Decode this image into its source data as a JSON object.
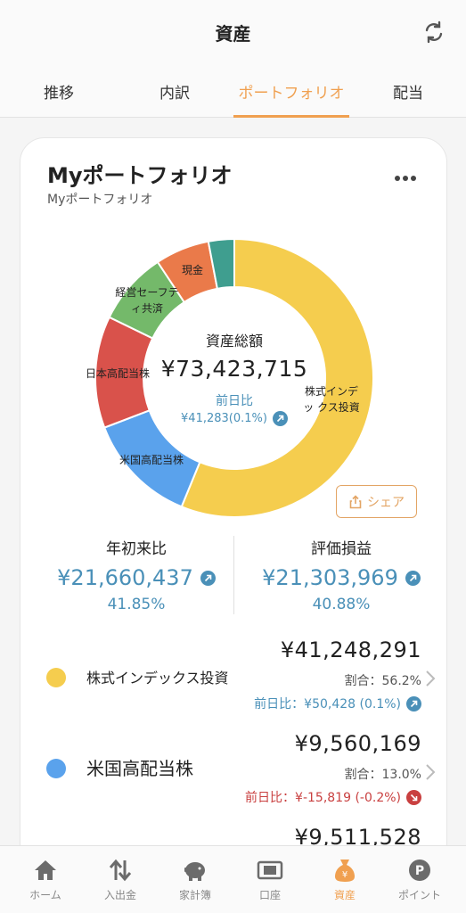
{
  "header": {
    "title": "資産"
  },
  "tabs": [
    {
      "label": "推移",
      "active": false
    },
    {
      "label": "内訳",
      "active": false
    },
    {
      "label": "ポートフォリオ",
      "active": true
    },
    {
      "label": "配当",
      "active": false
    }
  ],
  "card": {
    "title": "Myポートフォリオ",
    "subtitle": "Myポートフォリオ",
    "center_total_label": "資産総額",
    "center_total": "¥73,423,715",
    "center_prev_label": "前日比",
    "center_prev": "¥41,283(0.1%)",
    "share_label": "シェア"
  },
  "chart_data": {
    "type": "pie",
    "slices": [
      {
        "label": "株式インデックス投資",
        "share": 56.2,
        "color": "#f5cd4e"
      },
      {
        "label": "米国高配当株",
        "share": 13.0,
        "color": "#5aa2ec"
      },
      {
        "label": "日本高配当株",
        "share": 13.0,
        "color": "#d9524b"
      },
      {
        "label": "経営セーフティ共済",
        "share": 8.5,
        "color": "#74b96a"
      },
      {
        "label": "現金",
        "share": 6.3,
        "color": "#ea7a4a"
      },
      {
        "label": "",
        "share": 3.0,
        "color": "#3f9e8f"
      }
    ]
  },
  "donut_labels": {
    "index": "株式インデッ クス投資",
    "us": "米国高配当株",
    "jp": "日本高配当株",
    "kyosai": "経営セーフテ ィ共済",
    "cash": "現金"
  },
  "stats": {
    "ytd_label": "年初来比",
    "ytd_value": "¥21,660,437",
    "ytd_pct": "41.85%",
    "pl_label": "評価損益",
    "pl_value": "¥21,303,969",
    "pl_pct": "40.88%"
  },
  "holdings": [
    {
      "name": "株式インデックス投資",
      "amount": "¥41,248,291",
      "ratio": "割合：56.2%",
      "prev": "前日比：¥50,428 (0.1%)",
      "color": "#f5cd4e",
      "trend": "up"
    },
    {
      "name": "米国高配当株",
      "amount": "¥9,560,169",
      "ratio": "割合：13.0%",
      "prev": "前日比：¥-15,819 (-0.2%)",
      "color": "#5aa2ec",
      "trend": "down"
    },
    {
      "name": "",
      "amount": "¥9,511,528",
      "color": "#d9524b"
    }
  ],
  "bottom_nav": [
    {
      "label": "ホーム",
      "icon": "home-icon"
    },
    {
      "label": "入出金",
      "icon": "transfer-icon"
    },
    {
      "label": "家計簿",
      "icon": "piggy-bank-icon"
    },
    {
      "label": "口座",
      "icon": "account-card-icon"
    },
    {
      "label": "資産",
      "icon": "assets-bag-icon",
      "active": true
    },
    {
      "label": "ポイント",
      "icon": "points-icon"
    }
  ]
}
